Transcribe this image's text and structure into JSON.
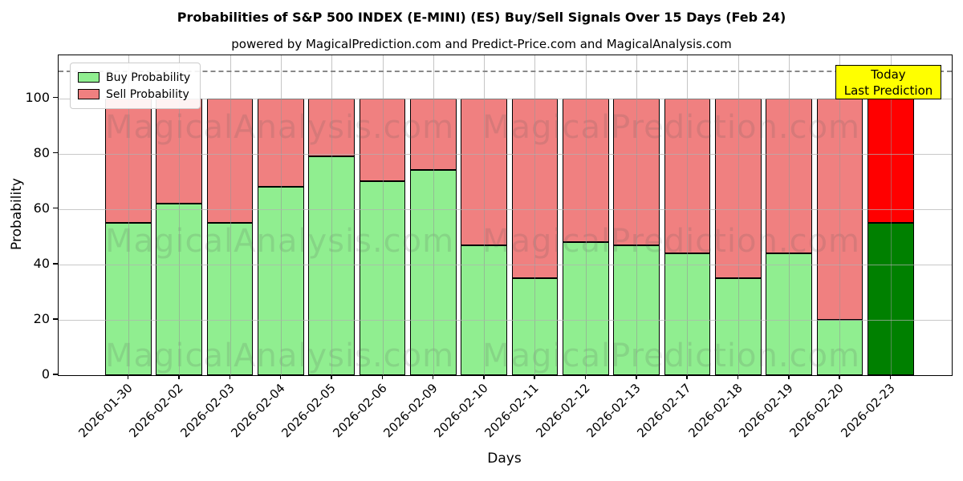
{
  "page": {
    "title": "Probabilities of S&P 500 INDEX (E-MINI) (ES) Buy/Sell Signals Over 15 Days (Feb 24)",
    "subtitle": "powered by MagicalPrediction.com and Predict-Price.com and MagicalAnalysis.com"
  },
  "chart_data": {
    "type": "bar",
    "stacked": true,
    "title": "Probabilities of S&P 500 INDEX (E-MINI) (ES) Buy/Sell Signals Over 15 Days (Feb 24)",
    "xlabel": "Days",
    "ylabel": "Probability",
    "categories": [
      "2026-01-30",
      "2026-02-02",
      "2026-02-03",
      "2026-02-04",
      "2026-02-05",
      "2026-02-06",
      "2026-02-09",
      "2026-02-10",
      "2026-02-11",
      "2026-02-12",
      "2026-02-13",
      "2026-02-17",
      "2026-02-18",
      "2026-02-19",
      "2026-02-20",
      "2026-02-23"
    ],
    "series": [
      {
        "name": "Buy Probability",
        "color": "#90EE90",
        "values": [
          55,
          62,
          55,
          68,
          79,
          70,
          74,
          47,
          35,
          48,
          47,
          44,
          35,
          44,
          20,
          55
        ]
      },
      {
        "name": "Sell Probability",
        "color": "#F08080",
        "values": [
          45,
          38,
          45,
          32,
          21,
          30,
          26,
          53,
          65,
          52,
          53,
          56,
          65,
          56,
          80,
          45
        ]
      }
    ],
    "final_bar": {
      "index": 15,
      "buy_color": "#008000",
      "sell_color": "#FF0000"
    },
    "ylim": [
      0,
      115.5
    ],
    "yticks": [
      0,
      20,
      40,
      60,
      80,
      100
    ],
    "grid": true,
    "dashed_line_y": 110,
    "legend_position": "upper left",
    "bar_edge_color": "#000000"
  },
  "annotation": {
    "line1": "Today",
    "line2": "Last Prediction",
    "bg_color": "#FFFF00"
  },
  "watermarks": {
    "left_text": "MagicalAnalysis.com",
    "right_text": "MagicalPrediction.com",
    "rows": 3
  }
}
